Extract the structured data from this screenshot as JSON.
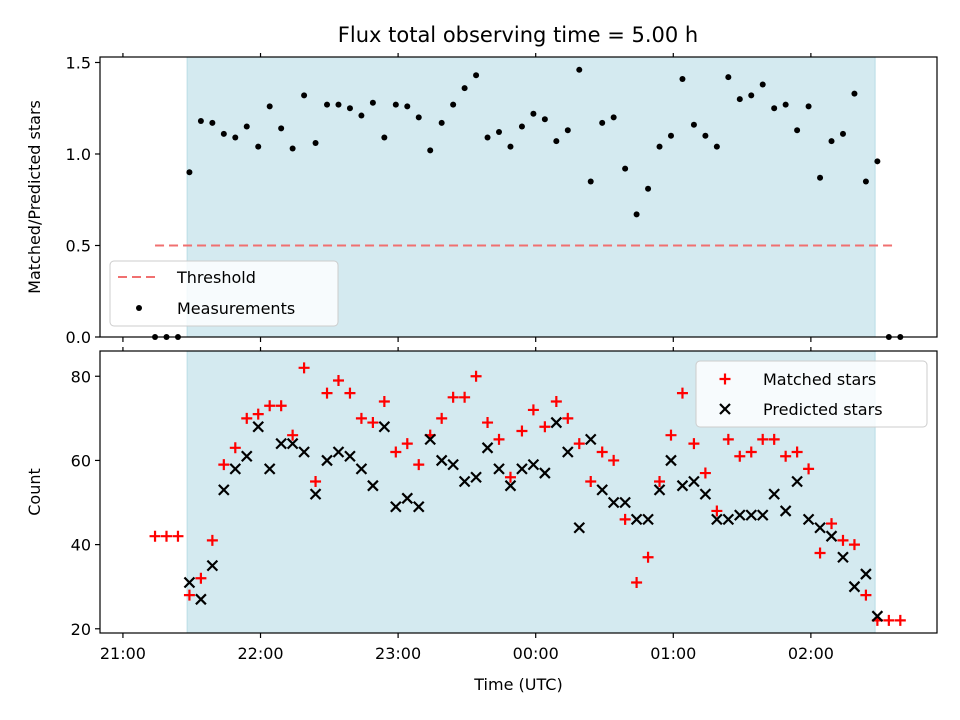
{
  "figure_title": "Flux total observing time = 5.00 h",
  "chart_data": [
    {
      "type": "scatter",
      "panel": "top",
      "title": "Flux total observing time = 5.00 h",
      "xlabel": "",
      "ylabel": "Matched/Predicted stars",
      "xlim": [
        "20:50",
        "02:55"
      ],
      "ylim": [
        0,
        1.53
      ],
      "x_ticks": [
        "21:00",
        "22:00",
        "23:00",
        "00:00",
        "01:00",
        "02:00"
      ],
      "x_ticklabels_visible": false,
      "y_ticks": [
        0.0,
        0.5,
        1.0,
        1.5
      ],
      "y_ticklabels": [
        "0.0",
        "0.5",
        "1.0",
        "1.5"
      ],
      "grid": false,
      "shaded_interval": {
        "start": "21:28",
        "end": "02:28",
        "color": "#d4eaf0"
      },
      "legend_position": "lower-left",
      "threshold": {
        "name": "Threshold",
        "y": 0.5,
        "x_start": "21:14",
        "x_end": "02:37",
        "color": "#f07070",
        "style": "dashed"
      },
      "series": [
        {
          "name": "Measurements",
          "color": "#000000",
          "marker": "dot",
          "points": [
            [
              "21:14",
              0.0
            ],
            [
              "21:19",
              0.0
            ],
            [
              "21:24",
              0.0
            ],
            [
              "21:29",
              0.9
            ],
            [
              "21:34",
              1.18
            ],
            [
              "21:39",
              1.17
            ],
            [
              "21:44",
              1.11
            ],
            [
              "21:49",
              1.09
            ],
            [
              "21:54",
              1.15
            ],
            [
              "21:59",
              1.04
            ],
            [
              "22:04",
              1.26
            ],
            [
              "22:09",
              1.14
            ],
            [
              "22:14",
              1.03
            ],
            [
              "22:19",
              1.32
            ],
            [
              "22:24",
              1.06
            ],
            [
              "22:29",
              1.27
            ],
            [
              "22:34",
              1.27
            ],
            [
              "22:39",
              1.25
            ],
            [
              "22:44",
              1.21
            ],
            [
              "22:49",
              1.28
            ],
            [
              "22:54",
              1.09
            ],
            [
              "22:59",
              1.27
            ],
            [
              "23:04",
              1.26
            ],
            [
              "23:09",
              1.2
            ],
            [
              "23:14",
              1.02
            ],
            [
              "23:19",
              1.17
            ],
            [
              "23:24",
              1.27
            ],
            [
              "23:29",
              1.36
            ],
            [
              "23:34",
              1.43
            ],
            [
              "23:39",
              1.09
            ],
            [
              "23:44",
              1.12
            ],
            [
              "23:49",
              1.04
            ],
            [
              "23:54",
              1.15
            ],
            [
              "23:59",
              1.22
            ],
            [
              "00:04",
              1.19
            ],
            [
              "00:09",
              1.07
            ],
            [
              "00:14",
              1.13
            ],
            [
              "00:19",
              1.46
            ],
            [
              "00:24",
              0.85
            ],
            [
              "00:29",
              1.17
            ],
            [
              "00:34",
              1.2
            ],
            [
              "00:39",
              0.92
            ],
            [
              "00:44",
              0.67
            ],
            [
              "00:49",
              0.81
            ],
            [
              "00:54",
              1.04
            ],
            [
              "00:59",
              1.1
            ],
            [
              "01:04",
              1.41
            ],
            [
              "01:09",
              1.16
            ],
            [
              "01:14",
              1.1
            ],
            [
              "01:19",
              1.04
            ],
            [
              "01:24",
              1.42
            ],
            [
              "01:29",
              1.3
            ],
            [
              "01:34",
              1.32
            ],
            [
              "01:39",
              1.38
            ],
            [
              "01:44",
              1.25
            ],
            [
              "01:49",
              1.27
            ],
            [
              "01:54",
              1.13
            ],
            [
              "01:59",
              1.26
            ],
            [
              "02:04",
              0.87
            ],
            [
              "02:09",
              1.07
            ],
            [
              "02:14",
              1.11
            ],
            [
              "02:19",
              1.33
            ],
            [
              "02:24",
              0.85
            ],
            [
              "02:29",
              0.96
            ],
            [
              "02:34",
              0.0
            ],
            [
              "02:39",
              0.0
            ]
          ]
        }
      ]
    },
    {
      "type": "scatter",
      "panel": "bottom",
      "xlabel": "Time (UTC)",
      "ylabel": "Count",
      "xlim": [
        "20:50",
        "02:55"
      ],
      "ylim": [
        19,
        86
      ],
      "x_ticks": [
        "21:00",
        "22:00",
        "23:00",
        "00:00",
        "01:00",
        "02:00"
      ],
      "x_ticklabels": [
        "21:00",
        "22:00",
        "23:00",
        "00:00",
        "01:00",
        "02:00"
      ],
      "y_ticks": [
        20,
        40,
        60,
        80
      ],
      "y_ticklabels": [
        "20",
        "40",
        "60",
        "80"
      ],
      "grid": false,
      "shaded_interval": {
        "start": "21:28",
        "end": "02:28",
        "color": "#d4eaf0"
      },
      "legend_position": "upper-right",
      "series": [
        {
          "name": "Matched stars",
          "color": "#ff0000",
          "marker": "plus",
          "points": [
            [
              "21:14",
              42
            ],
            [
              "21:19",
              42
            ],
            [
              "21:24",
              42
            ],
            [
              "21:29",
              28
            ],
            [
              "21:34",
              32
            ],
            [
              "21:39",
              41
            ],
            [
              "21:44",
              59
            ],
            [
              "21:49",
              63
            ],
            [
              "21:54",
              70
            ],
            [
              "21:59",
              71
            ],
            [
              "22:04",
              73
            ],
            [
              "22:09",
              73
            ],
            [
              "22:14",
              66
            ],
            [
              "22:19",
              82
            ],
            [
              "22:24",
              55
            ],
            [
              "22:29",
              76
            ],
            [
              "22:34",
              79
            ],
            [
              "22:39",
              76
            ],
            [
              "22:44",
              70
            ],
            [
              "22:49",
              69
            ],
            [
              "22:54",
              74
            ],
            [
              "22:59",
              62
            ],
            [
              "23:04",
              64
            ],
            [
              "23:09",
              59
            ],
            [
              "23:14",
              66
            ],
            [
              "23:19",
              70
            ],
            [
              "23:24",
              75
            ],
            [
              "23:29",
              75
            ],
            [
              "23:34",
              80
            ],
            [
              "23:39",
              69
            ],
            [
              "23:44",
              65
            ],
            [
              "23:49",
              56
            ],
            [
              "23:54",
              67
            ],
            [
              "23:59",
              72
            ],
            [
              "00:04",
              68
            ],
            [
              "00:09",
              74
            ],
            [
              "00:14",
              70
            ],
            [
              "00:19",
              64
            ],
            [
              "00:24",
              55
            ],
            [
              "00:29",
              62
            ],
            [
              "00:34",
              60
            ],
            [
              "00:39",
              46
            ],
            [
              "00:44",
              31
            ],
            [
              "00:49",
              37
            ],
            [
              "00:54",
              55
            ],
            [
              "00:59",
              66
            ],
            [
              "01:04",
              76
            ],
            [
              "01:09",
              64
            ],
            [
              "01:14",
              57
            ],
            [
              "01:19",
              48
            ],
            [
              "01:24",
              65
            ],
            [
              "01:29",
              61
            ],
            [
              "01:34",
              62
            ],
            [
              "01:39",
              65
            ],
            [
              "01:44",
              65
            ],
            [
              "01:49",
              61
            ],
            [
              "01:54",
              62
            ],
            [
              "01:59",
              58
            ],
            [
              "02:04",
              38
            ],
            [
              "02:09",
              45
            ],
            [
              "02:14",
              41
            ],
            [
              "02:19",
              40
            ],
            [
              "02:24",
              28
            ],
            [
              "02:29",
              22
            ],
            [
              "02:34",
              22
            ],
            [
              "02:39",
              22
            ]
          ]
        },
        {
          "name": "Predicted stars",
          "color": "#000000",
          "marker": "x",
          "points": [
            [
              "21:29",
              31
            ],
            [
              "21:34",
              27
            ],
            [
              "21:39",
              35
            ],
            [
              "21:44",
              53
            ],
            [
              "21:49",
              58
            ],
            [
              "21:54",
              61
            ],
            [
              "21:59",
              68
            ],
            [
              "22:04",
              58
            ],
            [
              "22:09",
              64
            ],
            [
              "22:14",
              64
            ],
            [
              "22:19",
              62
            ],
            [
              "22:24",
              52
            ],
            [
              "22:29",
              60
            ],
            [
              "22:34",
              62
            ],
            [
              "22:39",
              61
            ],
            [
              "22:44",
              58
            ],
            [
              "22:49",
              54
            ],
            [
              "22:54",
              68
            ],
            [
              "22:59",
              49
            ],
            [
              "23:04",
              51
            ],
            [
              "23:09",
              49
            ],
            [
              "23:14",
              65
            ],
            [
              "23:19",
              60
            ],
            [
              "23:24",
              59
            ],
            [
              "23:29",
              55
            ],
            [
              "23:34",
              56
            ],
            [
              "23:39",
              63
            ],
            [
              "23:44",
              58
            ],
            [
              "23:49",
              54
            ],
            [
              "23:54",
              58
            ],
            [
              "23:59",
              59
            ],
            [
              "00:04",
              57
            ],
            [
              "00:09",
              69
            ],
            [
              "00:14",
              62
            ],
            [
              "00:19",
              44
            ],
            [
              "00:24",
              65
            ],
            [
              "00:29",
              53
            ],
            [
              "00:34",
              50
            ],
            [
              "00:39",
              50
            ],
            [
              "00:44",
              46
            ],
            [
              "00:49",
              46
            ],
            [
              "00:54",
              53
            ],
            [
              "00:59",
              60
            ],
            [
              "01:04",
              54
            ],
            [
              "01:09",
              55
            ],
            [
              "01:14",
              52
            ],
            [
              "01:19",
              46
            ],
            [
              "01:24",
              46
            ],
            [
              "01:29",
              47
            ],
            [
              "01:34",
              47
            ],
            [
              "01:39",
              47
            ],
            [
              "01:44",
              52
            ],
            [
              "01:49",
              48
            ],
            [
              "01:54",
              55
            ],
            [
              "01:59",
              46
            ],
            [
              "02:04",
              44
            ],
            [
              "02:09",
              42
            ],
            [
              "02:14",
              37
            ],
            [
              "02:19",
              30
            ],
            [
              "02:24",
              33
            ],
            [
              "02:29",
              23
            ]
          ]
        }
      ]
    }
  ]
}
